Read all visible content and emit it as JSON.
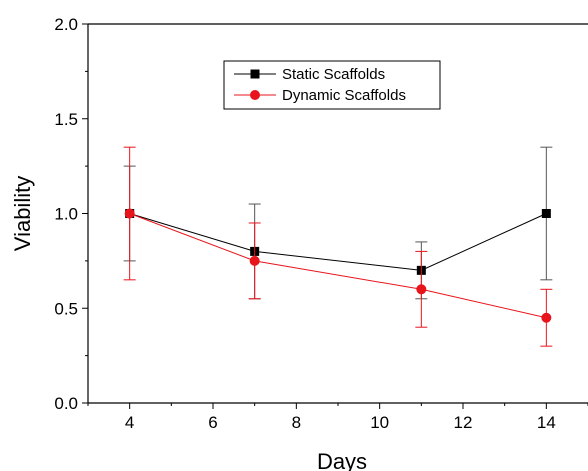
{
  "chart_data": {
    "type": "line",
    "title": "",
    "xlabel": "Days",
    "ylabel": "Viability",
    "xlim": [
      3,
      15
    ],
    "ylim": [
      0.0,
      2.0
    ],
    "x_ticks": [
      4,
      6,
      8,
      10,
      12,
      14
    ],
    "y_ticks": [
      0.0,
      0.5,
      1.0,
      1.5,
      2.0
    ],
    "x_tick_labels": [
      "4",
      "6",
      "8",
      "10",
      "12",
      "14"
    ],
    "y_tick_labels": [
      "0.0",
      "0.5",
      "1.0",
      "1.5",
      "2.0"
    ],
    "grid": false,
    "legend_position": "top-center",
    "series": [
      {
        "name": "Static Scaffolds",
        "color": "#000000",
        "marker": "square",
        "x": [
          4,
          7,
          11,
          14
        ],
        "y": [
          1.0,
          0.8,
          0.7,
          1.0
        ],
        "error": [
          0.25,
          0.25,
          0.15,
          0.35
        ]
      },
      {
        "name": "Dynamic Scaffolds",
        "color": "#e8141c",
        "marker": "circle",
        "x": [
          4,
          7,
          11,
          14
        ],
        "y": [
          1.0,
          0.75,
          0.6,
          0.45
        ],
        "error": [
          0.35,
          0.2,
          0.2,
          0.15
        ]
      }
    ]
  }
}
